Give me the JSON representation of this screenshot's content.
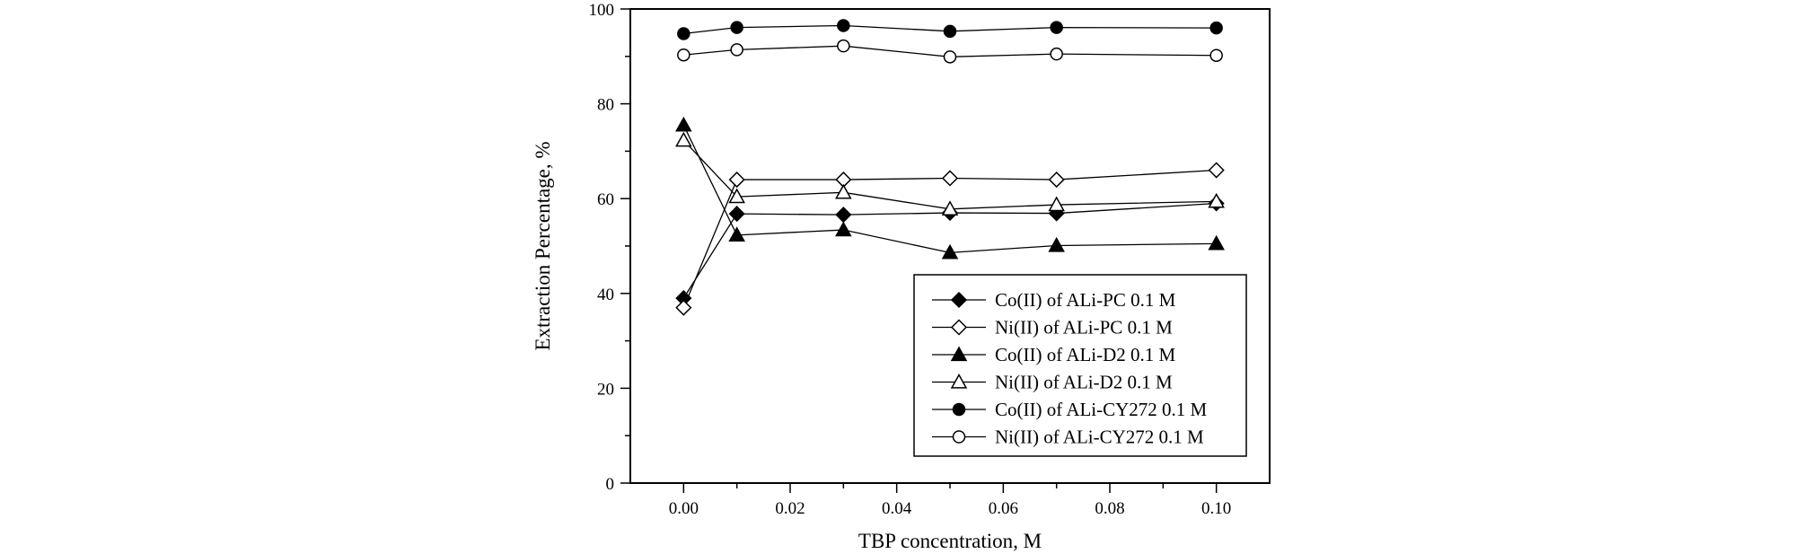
{
  "chart_data": {
    "type": "line",
    "title": "",
    "xlabel": "TBP concentration, M",
    "ylabel": "Extraction Percentage, %",
    "xlim": [
      -0.01,
      0.11
    ],
    "ylim": [
      0,
      100
    ],
    "xticks": [
      0.0,
      0.02,
      0.04,
      0.06,
      0.08,
      0.1
    ],
    "xtick_labels": [
      "0.00",
      "0.02",
      "0.04",
      "0.06",
      "0.08",
      "0.10"
    ],
    "yticks": [
      0,
      20,
      40,
      60,
      80,
      100
    ],
    "ytick_labels": [
      "0",
      "20",
      "40",
      "60",
      "80",
      "100"
    ],
    "grid": false,
    "legend_position": "bottom-right",
    "x": [
      0.0,
      0.01,
      0.03,
      0.05,
      0.07,
      0.1
    ],
    "series": [
      {
        "name": "Co(II) of ALi-PC 0.1 M",
        "marker": "diamond",
        "filled": true,
        "values": [
          39.0,
          56.8,
          56.6,
          57.0,
          56.9,
          59.0
        ]
      },
      {
        "name": "Ni(II) of ALi-PC 0.1 M",
        "marker": "diamond",
        "filled": false,
        "values": [
          37.0,
          64.0,
          64.0,
          64.3,
          64.0,
          66.0
        ]
      },
      {
        "name": "Co(II) of ALi-D2 0.1 M",
        "marker": "triangle",
        "filled": true,
        "values": [
          75.5,
          52.3,
          53.4,
          48.6,
          50.1,
          50.5
        ]
      },
      {
        "name": "Ni(II) of ALi-D2 0.1 M",
        "marker": "triangle",
        "filled": false,
        "values": [
          72.3,
          60.4,
          61.3,
          57.8,
          58.7,
          59.4
        ]
      },
      {
        "name": "Co(II) of ALi-CY272 0.1 M",
        "marker": "circle",
        "filled": true,
        "values": [
          94.8,
          96.1,
          96.5,
          95.3,
          96.1,
          96.0
        ]
      },
      {
        "name": "Ni(II) of ALi-CY272 0.1 M",
        "marker": "circle",
        "filled": false,
        "values": [
          90.3,
          91.4,
          92.2,
          89.9,
          90.5,
          90.2
        ]
      }
    ]
  }
}
